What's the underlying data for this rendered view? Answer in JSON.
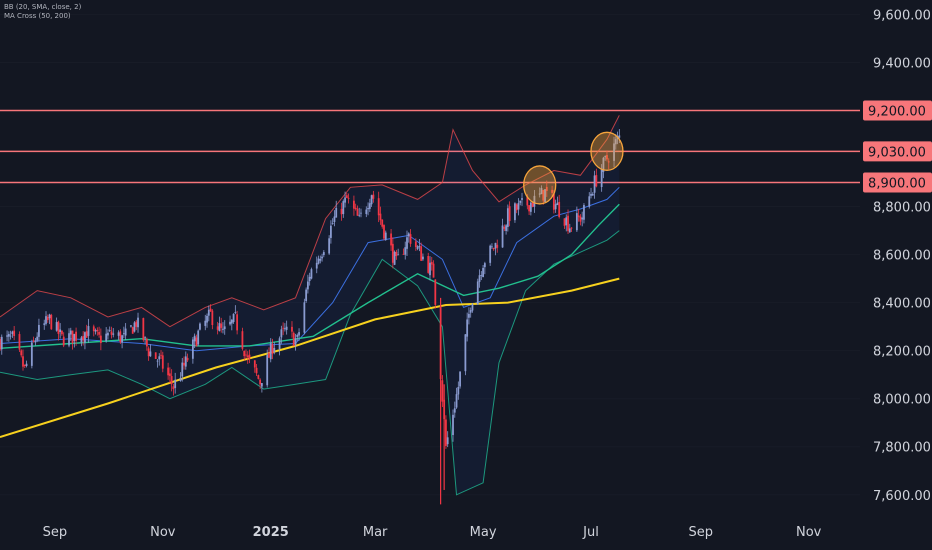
{
  "indicators": {
    "bb": "BB (20, SMA, close, 2)",
    "ma_cross": "MA Cross (50, 200)"
  },
  "colors": {
    "background": "#131722",
    "candle_up": "#8a9bd0",
    "candle_down": "#f23645",
    "bb_upper": "#e5484d",
    "bb_lower": "#1fb894",
    "bb_basis": "#3b6fe0",
    "bb_fill": "rgba(41,98,255,0.07)",
    "ma50": "#22c08e",
    "ma200": "#f7d11e",
    "level_line": "#f7767a",
    "level_fill": "#f7767a",
    "circle_fill": "rgba(247,165,60,0.40)",
    "circle_stroke": "#f7a53c"
  },
  "chart_data": {
    "type": "candlestick",
    "y_range": [
      7520,
      9660
    ],
    "x_range": [
      "2024-08-01",
      "2025-11-30"
    ],
    "y_ticks": [
      {
        "value": 9600,
        "label": "9,600.00"
      },
      {
        "value": 9400,
        "label": "9,400.00"
      },
      {
        "value": 8800,
        "label": "8,800.00"
      },
      {
        "value": 8600,
        "label": "8,600.00"
      },
      {
        "value": 8400,
        "label": "8,400.00"
      },
      {
        "value": 8200,
        "label": "8,200.00"
      },
      {
        "value": 8000,
        "label": "8,000.00"
      },
      {
        "value": 7800,
        "label": "7,800.00"
      },
      {
        "value": 7600,
        "label": "7,600.00"
      }
    ],
    "x_ticks": [
      {
        "date": "2024-09-01",
        "label": "Sep",
        "bold": false
      },
      {
        "date": "2024-11-01",
        "label": "Nov",
        "bold": false
      },
      {
        "date": "2025-01-01",
        "label": "2025",
        "bold": true
      },
      {
        "date": "2025-03-01",
        "label": "Mar",
        "bold": false
      },
      {
        "date": "2025-05-01",
        "label": "May",
        "bold": false
      },
      {
        "date": "2025-07-01",
        "label": "Jul",
        "bold": false
      },
      {
        "date": "2025-09-01",
        "label": "Sep",
        "bold": false
      },
      {
        "date": "2025-11-01",
        "label": "Nov",
        "bold": false
      }
    ],
    "levels": [
      {
        "value": 9200,
        "label": "9,200.00"
      },
      {
        "value": 9030,
        "label": "9,030.00"
      },
      {
        "value": 8900,
        "label": "8,900.00"
      }
    ],
    "highlights": [
      {
        "date": "2025-06-02",
        "value": 8890
      },
      {
        "date": "2025-07-10",
        "value": 9030
      }
    ],
    "close_path": [
      [
        "2024-08-01",
        8240
      ],
      [
        "2024-08-08",
        8250
      ],
      [
        "2024-08-15",
        8120
      ],
      [
        "2024-08-22",
        8270
      ],
      [
        "2024-08-29",
        8330
      ],
      [
        "2024-09-05",
        8250
      ],
      [
        "2024-09-12",
        8260
      ],
      [
        "2024-09-19",
        8280
      ],
      [
        "2024-09-26",
        8250
      ],
      [
        "2024-10-03",
        8270
      ],
      [
        "2024-10-10",
        8250
      ],
      [
        "2024-10-17",
        8320
      ],
      [
        "2024-10-24",
        8200
      ],
      [
        "2024-10-31",
        8150
      ],
      [
        "2024-11-07",
        8050
      ],
      [
        "2024-11-14",
        8150
      ],
      [
        "2024-11-21",
        8270
      ],
      [
        "2024-11-28",
        8350
      ],
      [
        "2024-12-05",
        8270
      ],
      [
        "2024-12-12",
        8330
      ],
      [
        "2024-12-19",
        8160
      ],
      [
        "2024-12-26",
        8070
      ],
      [
        "2025-01-02",
        8220
      ],
      [
        "2025-01-09",
        8280
      ],
      [
        "2025-01-16",
        8240
      ],
      [
        "2025-01-23",
        8520
      ],
      [
        "2025-01-30",
        8620
      ],
      [
        "2025-02-06",
        8750
      ],
      [
        "2025-02-13",
        8830
      ],
      [
        "2025-02-20",
        8740
      ],
      [
        "2025-02-27",
        8860
      ],
      [
        "2025-03-06",
        8700
      ],
      [
        "2025-03-13",
        8560
      ],
      [
        "2025-03-20",
        8680
      ],
      [
        "2025-03-27",
        8600
      ],
      [
        "2025-04-03",
        8520
      ],
      [
        "2025-04-10",
        7800
      ],
      [
        "2025-04-17",
        8050
      ],
      [
        "2025-04-24",
        8400
      ],
      [
        "2025-05-01",
        8570
      ],
      [
        "2025-05-08",
        8640
      ],
      [
        "2025-05-15",
        8760
      ],
      [
        "2025-05-22",
        8800
      ],
      [
        "2025-05-29",
        8820
      ],
      [
        "2025-06-05",
        8860
      ],
      [
        "2025-06-12",
        8800
      ],
      [
        "2025-06-19",
        8720
      ],
      [
        "2025-06-26",
        8760
      ],
      [
        "2025-07-03",
        8900
      ],
      [
        "2025-07-10",
        9000
      ],
      [
        "2025-07-17",
        9090
      ]
    ],
    "bb_upper": [
      [
        "2024-08-01",
        8340
      ],
      [
        "2024-08-22",
        8450
      ],
      [
        "2024-09-10",
        8420
      ],
      [
        "2024-10-01",
        8340
      ],
      [
        "2024-10-20",
        8380
      ],
      [
        "2024-11-05",
        8300
      ],
      [
        "2024-11-25",
        8380
      ],
      [
        "2024-12-10",
        8420
      ],
      [
        "2024-12-28",
        8370
      ],
      [
        "2025-01-15",
        8420
      ],
      [
        "2025-02-01",
        8750
      ],
      [
        "2025-02-15",
        8880
      ],
      [
        "2025-03-05",
        8890
      ],
      [
        "2025-03-25",
        8830
      ],
      [
        "2025-04-08",
        8900
      ],
      [
        "2025-04-14",
        9120
      ],
      [
        "2025-04-25",
        8950
      ],
      [
        "2025-05-10",
        8820
      ],
      [
        "2025-05-25",
        8890
      ],
      [
        "2025-06-10",
        8950
      ],
      [
        "2025-06-25",
        8930
      ],
      [
        "2025-07-10",
        9080
      ],
      [
        "2025-07-17",
        9180
      ]
    ],
    "bb_lower": [
      [
        "2024-08-01",
        8110
      ],
      [
        "2024-08-22",
        8080
      ],
      [
        "2024-09-10",
        8100
      ],
      [
        "2024-10-01",
        8120
      ],
      [
        "2024-10-20",
        8060
      ],
      [
        "2024-11-05",
        8000
      ],
      [
        "2024-11-25",
        8060
      ],
      [
        "2024-12-10",
        8130
      ],
      [
        "2024-12-28",
        8040
      ],
      [
        "2025-01-15",
        8060
      ],
      [
        "2025-02-01",
        8080
      ],
      [
        "2025-02-15",
        8350
      ],
      [
        "2025-03-05",
        8580
      ],
      [
        "2025-03-25",
        8470
      ],
      [
        "2025-04-08",
        8300
      ],
      [
        "2025-04-16",
        7600
      ],
      [
        "2025-05-01",
        7650
      ],
      [
        "2025-05-10",
        8150
      ],
      [
        "2025-05-25",
        8450
      ],
      [
        "2025-06-10",
        8560
      ],
      [
        "2025-06-25",
        8610
      ],
      [
        "2025-07-10",
        8660
      ],
      [
        "2025-07-17",
        8700
      ]
    ],
    "bb_basis": [
      [
        "2024-08-01",
        8230
      ],
      [
        "2024-09-10",
        8250
      ],
      [
        "2024-10-20",
        8230
      ],
      [
        "2024-11-20",
        8200
      ],
      [
        "2024-12-20",
        8220
      ],
      [
        "2025-01-15",
        8230
      ],
      [
        "2025-02-05",
        8400
      ],
      [
        "2025-02-25",
        8650
      ],
      [
        "2025-03-20",
        8680
      ],
      [
        "2025-04-08",
        8580
      ],
      [
        "2025-04-20",
        8380
      ],
      [
        "2025-05-05",
        8420
      ],
      [
        "2025-05-20",
        8650
      ],
      [
        "2025-06-10",
        8760
      ],
      [
        "2025-06-25",
        8790
      ],
      [
        "2025-07-10",
        8830
      ],
      [
        "2025-07-17",
        8880
      ]
    ],
    "ma50": [
      [
        "2024-08-01",
        8210
      ],
      [
        "2024-09-10",
        8230
      ],
      [
        "2024-10-20",
        8250
      ],
      [
        "2024-11-20",
        8220
      ],
      [
        "2024-12-20",
        8220
      ],
      [
        "2025-01-25",
        8260
      ],
      [
        "2025-02-25",
        8400
      ],
      [
        "2025-03-25",
        8520
      ],
      [
        "2025-04-20",
        8430
      ],
      [
        "2025-05-10",
        8460
      ],
      [
        "2025-06-01",
        8510
      ],
      [
        "2025-06-20",
        8600
      ],
      [
        "2025-07-05",
        8720
      ],
      [
        "2025-07-17",
        8810
      ]
    ],
    "ma200": [
      [
        "2024-08-01",
        7840
      ],
      [
        "2024-10-01",
        7980
      ],
      [
        "2024-12-01",
        8130
      ],
      [
        "2025-01-15",
        8220
      ],
      [
        "2025-03-01",
        8330
      ],
      [
        "2025-04-10",
        8390
      ],
      [
        "2025-05-15",
        8400
      ],
      [
        "2025-06-20",
        8450
      ],
      [
        "2025-07-17",
        8500
      ]
    ]
  }
}
